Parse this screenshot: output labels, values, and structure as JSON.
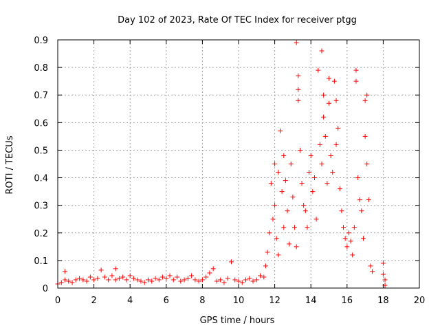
{
  "chart_data": {
    "type": "scatter",
    "title": "Day 102 of 2023, Rate Of TEC Index for receiver ptgg",
    "xlabel": "GPS time / hours",
    "ylabel": "ROTI / TECUs",
    "xlim": [
      0,
      20
    ],
    "ylim": [
      0,
      0.9
    ],
    "xticks": [
      "0",
      "2",
      "4",
      "6",
      "8",
      "10",
      "12",
      "14",
      "16",
      "18",
      "20"
    ],
    "yticks": [
      "0",
      "0.1",
      "0.2",
      "0.3",
      "0.4",
      "0.5",
      "0.6",
      "0.7",
      "0.8",
      "0.9"
    ],
    "grid": true,
    "marker": "plus",
    "color": "#ff0000",
    "series": [
      {
        "x": [
          0.0,
          0.2,
          0.4,
          0.4,
          0.6,
          0.8,
          1.0,
          1.2,
          1.4,
          1.6,
          1.8,
          2.0,
          2.2,
          2.4,
          2.6,
          2.8,
          3.0,
          3.2,
          3.2,
          3.4,
          3.6,
          3.8,
          4.0,
          4.2,
          4.4,
          4.6,
          4.8,
          5.0,
          5.2,
          5.4,
          5.6,
          5.8,
          6.0,
          6.2,
          6.4,
          6.6,
          6.8,
          7.0,
          7.2,
          7.4,
          7.6,
          7.8,
          8.0,
          8.2,
          8.4,
          8.6,
          8.8,
          9.0,
          9.2,
          9.4,
          9.6,
          9.8,
          10.0,
          10.2,
          10.4,
          10.6,
          10.8,
          11.0,
          11.2,
          11.4,
          11.5,
          11.6,
          11.7,
          11.8,
          11.9,
          12.0,
          12.0,
          12.1,
          12.2,
          12.2,
          12.3,
          12.4,
          12.5,
          12.5,
          12.6,
          12.7,
          12.8,
          12.9,
          13.0,
          13.1,
          13.2,
          13.2,
          13.3,
          13.3,
          13.3,
          13.4,
          13.5,
          13.6,
          13.7,
          13.8,
          13.9,
          14.0,
          14.1,
          14.2,
          14.3,
          14.4,
          14.5,
          14.6,
          14.6,
          14.7,
          14.7,
          14.8,
          14.9,
          15.0,
          15.0,
          15.1,
          15.2,
          15.3,
          15.4,
          15.4,
          15.5,
          15.6,
          15.7,
          15.8,
          15.9,
          16.0,
          16.1,
          16.2,
          16.3,
          16.4,
          16.5,
          16.5,
          16.6,
          16.7,
          16.8,
          16.9,
          17.0,
          17.0,
          17.1,
          17.1,
          17.2,
          17.3,
          17.4,
          18.0,
          18.0,
          18.1,
          18.1
        ],
        "y": [
          0.015,
          0.02,
          0.06,
          0.03,
          0.025,
          0.02,
          0.03,
          0.035,
          0.03,
          0.025,
          0.04,
          0.03,
          0.035,
          0.065,
          0.04,
          0.03,
          0.045,
          0.07,
          0.03,
          0.035,
          0.04,
          0.03,
          0.045,
          0.035,
          0.03,
          0.025,
          0.02,
          0.03,
          0.025,
          0.035,
          0.03,
          0.04,
          0.035,
          0.045,
          0.03,
          0.04,
          0.025,
          0.03,
          0.035,
          0.045,
          0.03,
          0.025,
          0.03,
          0.04,
          0.055,
          0.07,
          0.025,
          0.03,
          0.02,
          0.035,
          0.095,
          0.03,
          0.025,
          0.02,
          0.03,
          0.035,
          0.025,
          0.03,
          0.045,
          0.04,
          0.08,
          0.13,
          0.2,
          0.38,
          0.25,
          0.45,
          0.3,
          0.18,
          0.42,
          0.12,
          0.57,
          0.35,
          0.48,
          0.22,
          0.39,
          0.28,
          0.16,
          0.45,
          0.33,
          0.22,
          0.89,
          0.15,
          0.77,
          0.72,
          0.68,
          0.5,
          0.38,
          0.3,
          0.28,
          0.22,
          0.42,
          0.48,
          0.35,
          0.4,
          0.25,
          0.79,
          0.52,
          0.86,
          0.45,
          0.7,
          0.62,
          0.55,
          0.38,
          0.76,
          0.67,
          0.48,
          0.42,
          0.75,
          0.52,
          0.68,
          0.58,
          0.36,
          0.28,
          0.22,
          0.18,
          0.15,
          0.2,
          0.17,
          0.12,
          0.22,
          0.79,
          0.75,
          0.4,
          0.32,
          0.28,
          0.18,
          0.55,
          0.68,
          0.7,
          0.45,
          0.32,
          0.08,
          0.06,
          0.09,
          0.05,
          0.03,
          0.01
        ]
      }
    ]
  }
}
